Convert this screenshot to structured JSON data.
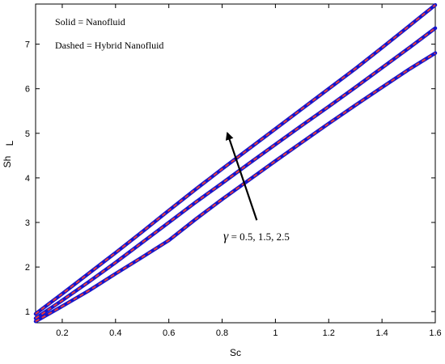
{
  "chart_data": {
    "type": "line",
    "xlabel": "Sc",
    "ylabel": "Sh",
    "ylabel_sub": "L",
    "xlim": [
      0.1,
      1.6
    ],
    "ylim": [
      0.75,
      7.9
    ],
    "xticks": [
      "0.2",
      "0.4",
      "0.6",
      "0.8",
      "1",
      "1.2",
      "1.4",
      "1.6"
    ],
    "xtick_values": [
      0.2,
      0.4,
      0.6,
      0.8,
      1.0,
      1.2,
      1.4,
      1.6
    ],
    "yticks": [
      "1",
      "2",
      "3",
      "4",
      "5",
      "6",
      "7"
    ],
    "ytick_values": [
      1,
      2,
      3,
      4,
      5,
      6,
      7
    ],
    "grid": false,
    "legend_lines": [
      "Solid   = Nanofluid",
      "Dashed = Hybrid Nanofluid"
    ],
    "legend_placement": "top-left",
    "annotation": {
      "symbol": "γ",
      "text": " = 0.5, 1.5, 2.5",
      "arrow_from": [
        0.93,
        3.05
      ],
      "arrow_to": [
        0.82,
        5.0
      ]
    },
    "x": [
      0.1,
      0.2,
      0.3,
      0.4,
      0.5,
      0.6,
      0.7,
      0.8,
      0.9,
      1.0,
      1.1,
      1.2,
      1.3,
      1.4,
      1.5,
      1.6
    ],
    "series": [
      {
        "values": [
          0.95,
          1.4,
          1.86,
          2.32,
          2.79,
          3.27,
          3.74,
          4.2,
          4.65,
          5.1,
          5.55,
          6.0,
          6.45,
          6.92,
          7.4,
          7.88
        ],
        "solid_color": "#1515cc",
        "dashed_color": "#e83a3a"
      },
      {
        "values": [
          0.85,
          1.25,
          1.67,
          2.1,
          2.55,
          3.0,
          3.45,
          3.88,
          4.32,
          4.75,
          5.18,
          5.6,
          6.03,
          6.47,
          6.91,
          7.36
        ],
        "solid_color": "#1515cc",
        "dashed_color": "#e83a3a"
      },
      {
        "values": [
          0.78,
          1.12,
          1.47,
          1.85,
          2.22,
          2.6,
          3.07,
          3.52,
          3.95,
          4.38,
          4.8,
          5.22,
          5.63,
          6.03,
          6.43,
          6.8
        ],
        "solid_color": "#1515cc",
        "dashed_color": "#e83a3a"
      }
    ]
  }
}
